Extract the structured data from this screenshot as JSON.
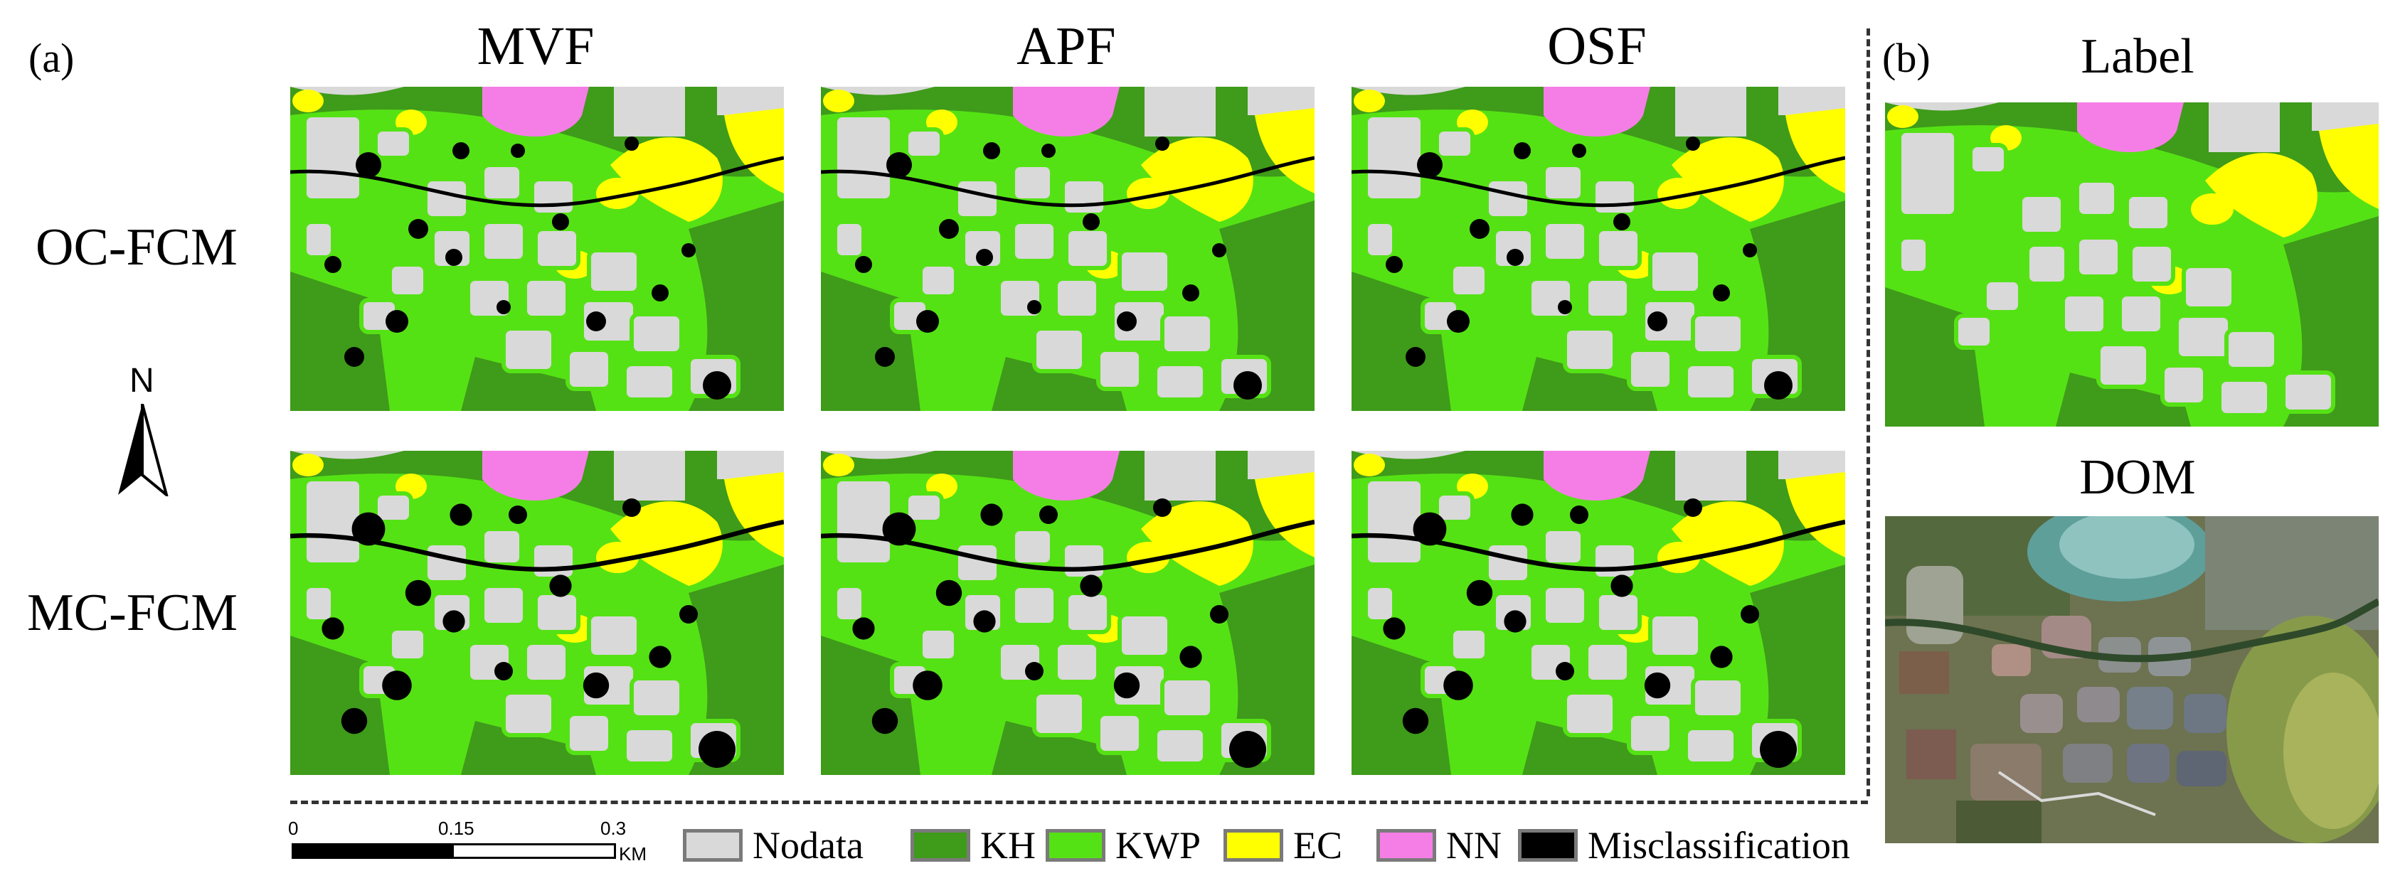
{
  "panels": {
    "a": "(a)",
    "b": "(b)"
  },
  "columns": [
    "MVF",
    "APF",
    "OSF"
  ],
  "rows": [
    "OC-FCM",
    "MC-FCM"
  ],
  "right_titles": {
    "label": "Label",
    "dom": "DOM"
  },
  "north": "N",
  "scale": {
    "ticks": [
      "0",
      "0.15",
      "0.3"
    ],
    "unit": "KM"
  },
  "legend": [
    {
      "name": "Nodata",
      "color": "#d9d9d9"
    },
    {
      "name": "KH",
      "color": "#3f9b1a"
    },
    {
      "name": "KWP",
      "color": "#55e215"
    },
    {
      "name": "EC",
      "color": "#ffff00"
    },
    {
      "name": "NN",
      "color": "#f57ee6"
    },
    {
      "name": "Misclassification",
      "color": "#000000"
    }
  ]
}
